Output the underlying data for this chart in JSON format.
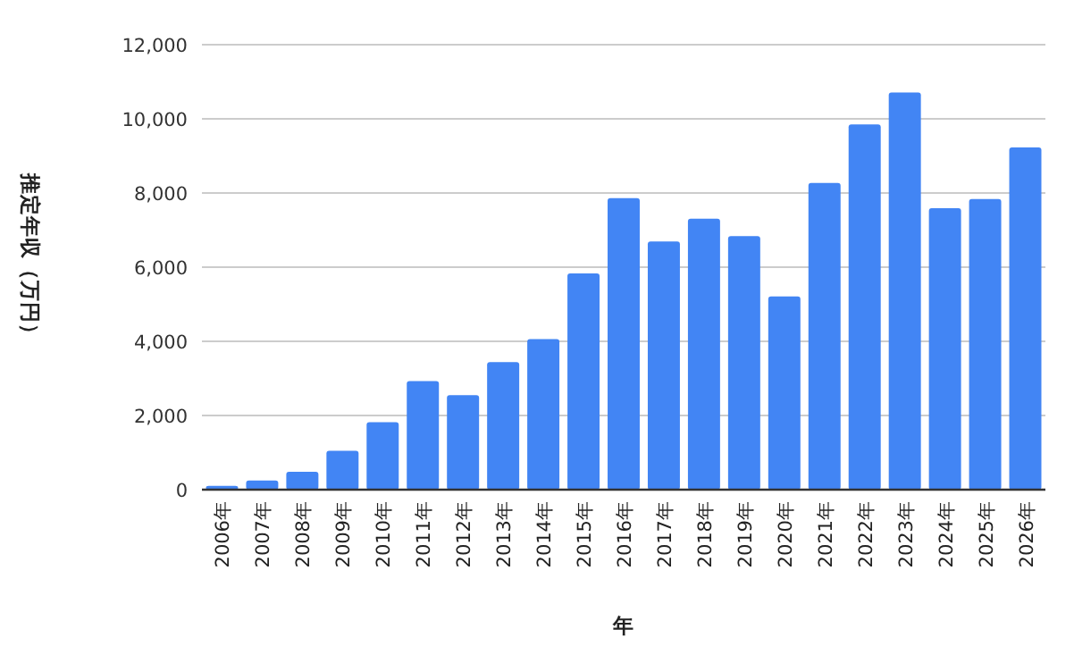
{
  "chart_data": {
    "type": "bar",
    "xlabel": "年",
    "ylabel": "推定年収（万円）",
    "categories": [
      "2006年",
      "2007年",
      "2008年",
      "2009年",
      "2010年",
      "2011年",
      "2012年",
      "2013年",
      "2014年",
      "2015年",
      "2016年",
      "2017年",
      "2018年",
      "2019年",
      "2020年",
      "2021年",
      "2022年",
      "2023年",
      "2024年",
      "2025年",
      "2026年"
    ],
    "values": [
      100,
      250,
      480,
      1050,
      1820,
      2930,
      2550,
      3440,
      4060,
      5830,
      7860,
      6690,
      7310,
      6840,
      5210,
      8270,
      9850,
      10710,
      7590,
      7840,
      9230
    ],
    "color": "#4285f4",
    "ylim": [
      0,
      12000
    ],
    "yticks": [
      {
        "value": 0,
        "label": "0"
      },
      {
        "value": 2000,
        "label": "2,000"
      },
      {
        "value": 4000,
        "label": "4,000"
      },
      {
        "value": 6000,
        "label": "6,000"
      },
      {
        "value": 8000,
        "label": "8,000"
      },
      {
        "value": 10000,
        "label": "10,000"
      },
      {
        "value": 12000,
        "label": "12,000"
      }
    ],
    "grid": "y"
  }
}
